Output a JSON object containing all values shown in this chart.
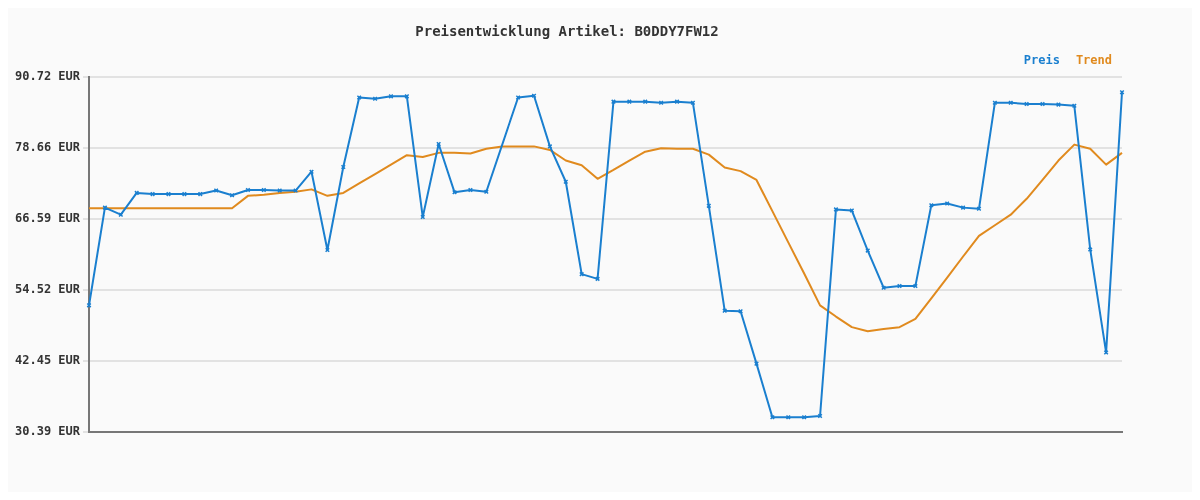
{
  "chart_data": {
    "type": "line",
    "title": "Preisentwicklung Artikel: B0DDY7FW12",
    "categories": [
      null,
      null,
      null,
      null,
      null,
      null,
      null,
      null,
      null,
      null,
      null,
      null,
      null,
      null,
      null,
      null,
      null,
      null,
      null,
      null,
      null,
      null,
      null,
      null,
      null,
      null,
      null,
      null,
      null,
      null,
      null,
      null,
      null,
      null,
      null,
      null,
      null,
      null,
      null,
      null,
      null,
      null,
      null,
      null,
      null,
      null,
      null,
      null,
      null,
      null,
      null,
      null,
      null,
      null,
      null,
      null,
      null,
      null,
      null,
      null,
      null,
      null,
      null,
      null,
      null,
      null
    ],
    "series": [
      {
        "name": "Preis",
        "color": "#1a7fcf",
        "marker": "cross",
        "values": [
          51.9,
          68.5,
          67.3,
          71.0,
          70.8,
          70.8,
          70.8,
          70.8,
          71.4,
          70.6,
          71.5,
          71.5,
          71.4,
          71.4,
          74.6,
          61.3,
          75.4,
          87.2,
          87.0,
          87.4,
          87.4,
          66.9,
          79.3,
          71.1,
          71.5,
          71.2,
          null,
          87.2,
          87.5,
          78.9,
          72.9,
          57.2,
          56.4,
          86.5,
          86.5,
          86.5,
          86.3,
          86.5,
          86.3,
          68.8,
          51.0,
          50.9,
          42.0,
          32.9,
          32.9,
          32.9,
          33.1,
          68.2,
          68.0,
          61.2,
          54.9,
          55.2,
          55.2,
          68.9,
          69.2,
          68.5,
          68.3,
          86.3,
          86.3,
          86.1,
          86.1,
          86.0,
          85.8,
          61.4,
          43.9,
          88.1
        ]
      },
      {
        "name": "Trend",
        "color": "#e08a1e",
        "marker": "none",
        "values": [
          68.4,
          68.4,
          68.4,
          68.4,
          68.4,
          68.4,
          68.4,
          68.4,
          68.4,
          68.4,
          70.5,
          70.7,
          71.0,
          71.2,
          71.6,
          70.5,
          71.0,
          72.6,
          74.2,
          75.8,
          77.4,
          77.1,
          77.8,
          77.8,
          77.7,
          78.5,
          78.9,
          78.9,
          78.9,
          78.3,
          76.5,
          75.7,
          73.4,
          74.9,
          76.5,
          78.0,
          78.6,
          78.5,
          78.5,
          77.5,
          75.3,
          74.7,
          73.2,
          67.9,
          62.6,
          57.3,
          51.9,
          50.0,
          48.2,
          47.5,
          47.9,
          48.2,
          49.6,
          53.1,
          56.6,
          60.2,
          63.7,
          65.5,
          67.3,
          70.0,
          73.2,
          76.5,
          79.2,
          78.5,
          75.8,
          77.8
        ]
      }
    ],
    "ylim": [
      30.39,
      90.72
    ],
    "yticks": [
      {
        "value": 30.39,
        "label": "30.39 EUR"
      },
      {
        "value": 42.45,
        "label": "42.45 EUR"
      },
      {
        "value": 54.52,
        "label": "54.52 EUR"
      },
      {
        "value": 66.59,
        "label": "66.59 EUR"
      },
      {
        "value": 78.66,
        "label": "78.66 EUR"
      },
      {
        "value": 90.72,
        "label": "90.72 EUR"
      }
    ],
    "grid": "y",
    "legend": "top right",
    "tick_labels": "y"
  }
}
